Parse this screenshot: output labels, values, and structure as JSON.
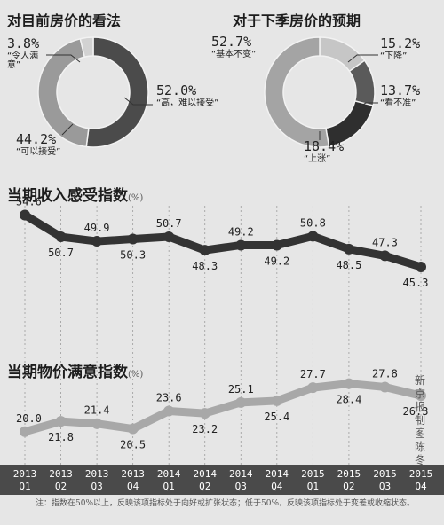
{
  "pies": [
    {
      "title": "对目前房价的看法",
      "slices": [
        {
          "value": 52.0,
          "pct": "52.0%",
          "text": "“高，难以接受”",
          "color": "#4b4b4b"
        },
        {
          "value": 44.2,
          "pct": "44.2%",
          "text": "“可以接受”",
          "color": "#9a9a9a"
        },
        {
          "value": 3.8,
          "pct": "3.8%",
          "text": "“令人满意”",
          "color": "#d2d2d2"
        }
      ]
    },
    {
      "title": "对于下季房价的预期",
      "slices": [
        {
          "value": 15.2,
          "pct": "15.2%",
          "text": "“下降”",
          "color": "#c6c6c6"
        },
        {
          "value": 13.7,
          "pct": "13.7%",
          "text": "“看不准”",
          "color": "#5a5a5a"
        },
        {
          "value": 18.4,
          "pct": "18.4%",
          "text": "“上涨”",
          "color": "#2f2f2f"
        },
        {
          "value": 52.7,
          "pct": "52.7%",
          "text": "“基本不变”",
          "color": "#a4a4a4"
        }
      ]
    }
  ],
  "chart_data": [
    {
      "type": "line",
      "title": "当期收入感受指数",
      "unit": "(%)",
      "x": [
        "2013 Q1",
        "2013 Q2",
        "2013 Q3",
        "2013 Q4",
        "2014 Q1",
        "2014 Q2",
        "2014 Q3",
        "2014 Q4",
        "2015 Q1",
        "2015 Q2",
        "2015 Q3",
        "2015 Q4"
      ],
      "values": [
        54.6,
        50.7,
        49.9,
        50.3,
        50.7,
        48.3,
        49.2,
        49.2,
        50.8,
        48.5,
        47.3,
        45.3
      ],
      "labels": [
        "54.6",
        "50.7",
        "49.9",
        "50.3",
        "50.7",
        "48.3",
        "49.2",
        "49.2",
        "50.8",
        "48.5",
        "47.3",
        "45.3"
      ],
      "color": "#333333"
    },
    {
      "type": "line",
      "title": "当期物价满意指数",
      "unit": "(%)",
      "x": [
        "2013 Q1",
        "2013 Q2",
        "2013 Q3",
        "2013 Q4",
        "2014 Q1",
        "2014 Q2",
        "2014 Q3",
        "2014 Q4",
        "2015 Q1",
        "2015 Q2",
        "2015 Q3",
        "2015 Q4"
      ],
      "values": [
        20.0,
        21.8,
        21.4,
        20.5,
        23.6,
        23.2,
        25.1,
        25.4,
        27.7,
        28.4,
        27.8,
        26.3
      ],
      "labels": [
        "20.0",
        "21.8",
        "21.4",
        "20.5",
        "23.6",
        "23.2",
        "25.1",
        "25.4",
        "27.7",
        "28.4",
        "27.8",
        "26.3"
      ],
      "color": "#a8a8a8"
    }
  ],
  "axis": {
    "years": [
      "2013",
      "2013",
      "2013",
      "2013",
      "2014",
      "2014",
      "2014",
      "2014",
      "2015",
      "2015",
      "2015",
      "2015"
    ],
    "quarters": [
      "Q1",
      "Q2",
      "Q3",
      "Q4",
      "Q1",
      "Q2",
      "Q3",
      "Q4",
      "Q1",
      "Q2",
      "Q3",
      "Q4"
    ]
  },
  "credit": "新京报制图陈冬",
  "note": "注：指数在50%以上，反映该项指标处于向好或扩张状态；低于50%，反映该项指标处于变差或收缩状态。"
}
